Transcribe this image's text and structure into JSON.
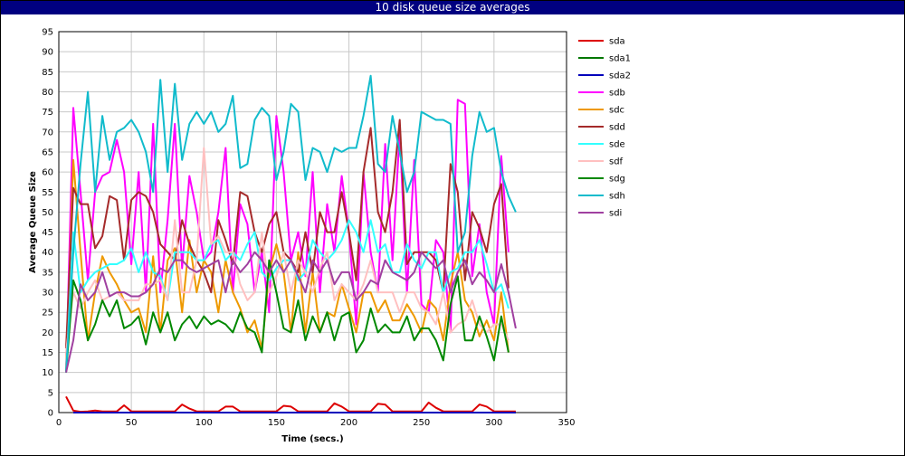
{
  "window": {
    "title": "10 disk queue size averages"
  },
  "colors": {
    "title_bar": "#000080",
    "grid": "#c8c8c8",
    "plot_border": "#000000"
  },
  "chart_data": {
    "type": "line",
    "title": "10 disk queue size averages",
    "xlabel": "Time (secs.)",
    "ylabel": "Average Queue Size",
    "xlim": [
      0,
      350
    ],
    "ylim": [
      0,
      95
    ],
    "xticks": [
      0,
      50,
      100,
      150,
      200,
      250,
      300,
      350
    ],
    "yticks": [
      0,
      5,
      10,
      15,
      20,
      25,
      30,
      35,
      40,
      45,
      50,
      55,
      60,
      65,
      70,
      75,
      80,
      85,
      90,
      95
    ],
    "grid": true,
    "legend_position": "right",
    "x": [
      5,
      10,
      15,
      20,
      25,
      30,
      35,
      40,
      45,
      50,
      55,
      60,
      65,
      70,
      75,
      80,
      85,
      90,
      95,
      100,
      105,
      110,
      115,
      120,
      125,
      130,
      135,
      140,
      145,
      150,
      155,
      160,
      165,
      170,
      175,
      180,
      185,
      190,
      195,
      200,
      205,
      210,
      215,
      220,
      225,
      230,
      235,
      240,
      245,
      250,
      255,
      260,
      265,
      270,
      275,
      280,
      285,
      290,
      295,
      300,
      305,
      310,
      315
    ],
    "series": [
      {
        "name": "sda",
        "color": "#dd0000",
        "values": [
          4,
          0.5,
          0.2,
          0.3,
          0.5,
          0.3,
          0.3,
          0.3,
          1.8,
          0.3,
          0.3,
          0.3,
          0.3,
          0.3,
          0.3,
          0.3,
          2,
          1,
          0.3,
          0.3,
          0.3,
          0.3,
          1.5,
          1.5,
          0.3,
          0.3,
          0.3,
          0.3,
          0.3,
          0.3,
          1.7,
          1.5,
          0.3,
          0.3,
          0.3,
          0.3,
          0.3,
          2.3,
          1.5,
          0.3,
          0.3,
          0.3,
          0.3,
          2.2,
          2,
          0.3,
          0.3,
          0.3,
          0.3,
          0.3,
          2.5,
          1.2,
          0.3,
          0.3,
          0.3,
          0.3,
          0.3,
          2,
          1.5,
          0.3,
          0.3,
          0.3,
          0.3
        ]
      },
      {
        "name": "sda1",
        "color": "#007700",
        "values": [
          null,
          0,
          0,
          0,
          0,
          0,
          0,
          0,
          0,
          0,
          0,
          0,
          0,
          0,
          0,
          0,
          0,
          0,
          0,
          0,
          0,
          0,
          0,
          0,
          0,
          0,
          0,
          0,
          0,
          0,
          0,
          0,
          0,
          0,
          0,
          0,
          0,
          0,
          0,
          0,
          0,
          0,
          0,
          0,
          0,
          0,
          0,
          0,
          0,
          0,
          0,
          0,
          0,
          0,
          0,
          0,
          0,
          0,
          0,
          0,
          0,
          0,
          0
        ]
      },
      {
        "name": "sda2",
        "color": "#0000bb",
        "values": [
          null,
          0,
          0,
          0,
          0,
          0,
          0,
          0,
          0,
          0,
          0,
          0,
          0,
          0,
          0,
          0,
          0,
          0,
          0,
          0,
          0,
          0,
          0,
          0,
          0,
          0,
          0,
          0,
          0,
          0,
          0,
          0,
          0,
          0,
          0,
          0,
          0,
          0,
          0,
          0,
          0,
          0,
          0,
          0,
          0,
          0,
          0,
          0,
          0,
          0,
          0,
          0,
          0,
          0,
          0,
          0,
          0,
          0,
          0,
          0,
          0,
          0,
          0
        ]
      },
      {
        "name": "sdb",
        "color": "#ff00ff",
        "values": [
          10,
          76,
          55,
          33,
          55,
          59,
          60,
          68,
          60,
          37,
          60,
          30,
          72,
          30,
          48,
          72,
          36,
          59,
          50,
          38,
          40,
          50,
          66,
          30,
          52,
          47,
          30,
          40,
          25,
          74,
          60,
          38,
          45,
          34,
          60,
          30,
          52,
          40,
          59,
          45,
          22,
          60,
          40,
          30,
          67,
          38,
          70,
          30,
          63,
          27,
          25,
          43,
          40,
          20,
          78,
          77,
          34,
          47,
          30,
          22,
          64,
          40,
          null
        ]
      },
      {
        "name": "sdc",
        "color": "#ee9900",
        "values": [
          10,
          63,
          40,
          18,
          30,
          39,
          35,
          32,
          28,
          25,
          26,
          20,
          39,
          20,
          38,
          41,
          25,
          43,
          30,
          38,
          35,
          25,
          38,
          30,
          26,
          20,
          23,
          16,
          35,
          42,
          35,
          20,
          40,
          20,
          35,
          20,
          25,
          24,
          32,
          26,
          20,
          30,
          30,
          25,
          28,
          23,
          23,
          27,
          24,
          20,
          28,
          26,
          18,
          32,
          40,
          28,
          25,
          19,
          23,
          18,
          30,
          15,
          null
        ]
      },
      {
        "name": "sdd",
        "color": "#a52a2a",
        "values": [
          16,
          56,
          52,
          52,
          41,
          44,
          54,
          53,
          38,
          53,
          55,
          54,
          50,
          42,
          40,
          38,
          48,
          42,
          38,
          35,
          30,
          48,
          43,
          37,
          55,
          54,
          45,
          40,
          47,
          50,
          40,
          38,
          35,
          45,
          35,
          50,
          45,
          45,
          55,
          45,
          33,
          60,
          71,
          50,
          45,
          55,
          73,
          37,
          40,
          40,
          40,
          38,
          30,
          62,
          55,
          33,
          50,
          46,
          40,
          52,
          57,
          31,
          null
        ]
      },
      {
        "name": "sde",
        "color": "#33ffff",
        "values": [
          10,
          45,
          30,
          33,
          35,
          36,
          37,
          37,
          38,
          41,
          35,
          40,
          35,
          34,
          28,
          40,
          40,
          40,
          38,
          38,
          42,
          43,
          38,
          40,
          38,
          42,
          45,
          35,
          33,
          36,
          38,
          38,
          33,
          35,
          43,
          40,
          38,
          40,
          43,
          48,
          45,
          40,
          48,
          40,
          42,
          35,
          35,
          42,
          38,
          36,
          40,
          40,
          30,
          35,
          36,
          40,
          40,
          43,
          37,
          30,
          32,
          26,
          null
        ]
      },
      {
        "name": "sdf",
        "color": "#ffc0c0",
        "values": [
          15,
          30,
          26,
          30,
          33,
          28,
          29,
          30,
          28,
          28,
          28,
          32,
          32,
          33,
          28,
          48,
          30,
          30,
          38,
          66,
          42,
          44,
          40,
          40,
          32,
          28,
          30,
          45,
          30,
          34,
          40,
          30,
          38,
          35,
          30,
          36,
          40,
          28,
          32,
          30,
          28,
          32,
          38,
          30,
          30,
          30,
          25,
          30,
          30,
          26,
          25,
          22,
          30,
          20,
          22,
          23,
          28,
          22,
          20,
          22,
          22,
          18,
          null
        ]
      },
      {
        "name": "sdg",
        "color": "#008800",
        "values": [
          10,
          33,
          28,
          18,
          22,
          28,
          24,
          28,
          21,
          22,
          24,
          17,
          25,
          20,
          25,
          18,
          22,
          24,
          21,
          24,
          22,
          23,
          22,
          20,
          25,
          21,
          20,
          15,
          38,
          30,
          21,
          20,
          28,
          18,
          24,
          20,
          25,
          18,
          24,
          25,
          15,
          18,
          26,
          20,
          22,
          20,
          20,
          24,
          18,
          21,
          21,
          18,
          13,
          27,
          34,
          18,
          18,
          24,
          19,
          13,
          24,
          15,
          null
        ]
      },
      {
        "name": "sdh",
        "color": "#11bbcc",
        "values": [
          10,
          40,
          62,
          80,
          55,
          74,
          63,
          70,
          71,
          73,
          70,
          65,
          55,
          83,
          60,
          82,
          63,
          72,
          75,
          72,
          75,
          70,
          72,
          79,
          61,
          62,
          73,
          76,
          74,
          58,
          65,
          77,
          75,
          58,
          66,
          65,
          60,
          66,
          65,
          66,
          66,
          74,
          84,
          62,
          60,
          74,
          65,
          55,
          60,
          75,
          74,
          73,
          73,
          72,
          40,
          45,
          64,
          75,
          70,
          71,
          60,
          54,
          50
        ]
      },
      {
        "name": "sdi",
        "color": "#a040a0",
        "values": [
          10,
          18,
          32,
          28,
          30,
          35,
          29,
          30,
          30,
          29,
          29,
          30,
          32,
          36,
          35,
          38,
          38,
          36,
          35,
          36,
          37,
          38,
          30,
          38,
          35,
          37,
          40,
          38,
          35,
          38,
          35,
          38,
          34,
          30,
          38,
          35,
          38,
          32,
          35,
          35,
          28,
          30,
          33,
          32,
          38,
          35,
          34,
          33,
          35,
          40,
          38,
          36,
          38,
          30,
          35,
          38,
          32,
          35,
          33,
          30,
          37,
          30,
          21
        ]
      }
    ]
  }
}
